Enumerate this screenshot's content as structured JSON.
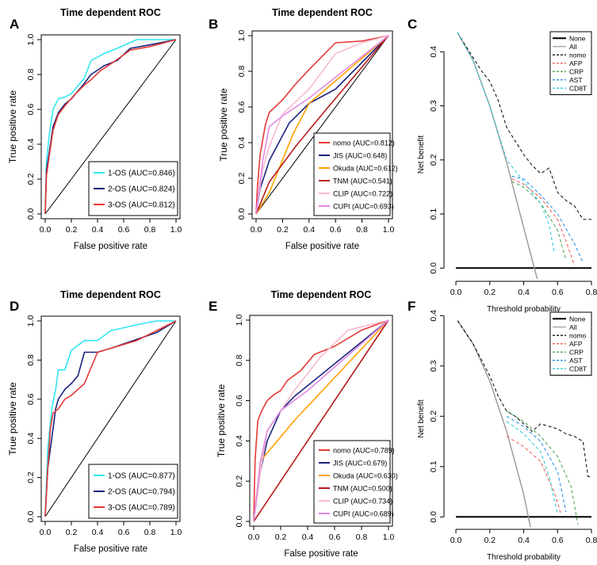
{
  "figure": {
    "panels": [
      {
        "letter": "A",
        "title": "Time dependent ROC",
        "xlabel": "False positive rate",
        "ylabel": "True positive rate",
        "kind": "roc"
      },
      {
        "letter": "B",
        "title": "Time dependent ROC",
        "xlabel": "False positive rate",
        "ylabel": "True positive rate",
        "kind": "roc"
      },
      {
        "letter": "C",
        "title": "",
        "xlabel": "Threshold probability",
        "ylabel": "Net benefit",
        "kind": "dca"
      },
      {
        "letter": "D",
        "title": "Time dependent ROC",
        "xlabel": "False positive rate",
        "ylabel": "True positive rate",
        "kind": "roc"
      },
      {
        "letter": "E",
        "title": "Time dependent ROC",
        "xlabel": "False positive rate",
        "ylabel": "True positive rate",
        "kind": "roc"
      },
      {
        "letter": "F",
        "title": "",
        "xlabel": "Threshold probability",
        "ylabel": "Net benefit",
        "kind": "dca"
      }
    ]
  },
  "chart_data": [
    {
      "panel": "A",
      "type": "line",
      "title": "Time dependent ROC",
      "xlabel": "False positive rate",
      "ylabel": "True positive rate",
      "xlim": [
        0,
        1
      ],
      "ylim": [
        0,
        1
      ],
      "xticks": [
        "0.0",
        "0.2",
        "0.4",
        "0.6",
        "0.8",
        "1.0"
      ],
      "yticks": [
        "0.0",
        "0.2",
        "0.4",
        "0.6",
        "0.8",
        "1.0"
      ],
      "legend_position": "bottom-right",
      "diagonal": true,
      "series": [
        {
          "name": "1-OS (AUC=0.846)",
          "color": "#33e6f2",
          "x": [
            0,
            0.01,
            0.03,
            0.06,
            0.1,
            0.15,
            0.2,
            0.3,
            0.35,
            0.45,
            0.55,
            0.7,
            0.85,
            1
          ],
          "y": [
            0,
            0.3,
            0.45,
            0.6,
            0.66,
            0.67,
            0.69,
            0.78,
            0.88,
            0.92,
            0.95,
            1.0,
            1.0,
            1
          ]
        },
        {
          "name": "2-OS (AUC=0.824)",
          "color": "#1a237e",
          "x": [
            0,
            0.01,
            0.03,
            0.06,
            0.1,
            0.15,
            0.2,
            0.3,
            0.35,
            0.45,
            0.55,
            0.65,
            0.8,
            1
          ],
          "y": [
            0,
            0.25,
            0.35,
            0.5,
            0.58,
            0.63,
            0.66,
            0.75,
            0.8,
            0.85,
            0.88,
            0.95,
            0.97,
            1
          ]
        },
        {
          "name": "3-OS (AUC=0.812)",
          "color": "#e53935",
          "x": [
            0,
            0.01,
            0.03,
            0.06,
            0.1,
            0.15,
            0.22,
            0.3,
            0.35,
            0.42,
            0.52,
            0.65,
            0.8,
            1
          ],
          "y": [
            0,
            0.22,
            0.33,
            0.48,
            0.57,
            0.62,
            0.68,
            0.74,
            0.77,
            0.82,
            0.87,
            0.94,
            0.96,
            1
          ]
        }
      ]
    },
    {
      "panel": "B",
      "type": "line",
      "title": "Time dependent ROC",
      "xlabel": "False positive rate",
      "ylabel": "True positive rate",
      "xlim": [
        0,
        1
      ],
      "ylim": [
        0,
        1
      ],
      "xticks": [
        "0.0",
        "0.2",
        "0.4",
        "0.6",
        "0.8",
        "1.0"
      ],
      "yticks": [
        "0.0",
        "0.2",
        "0.4",
        "0.6",
        "0.8",
        "1.0"
      ],
      "legend_position": "bottom-right",
      "diagonal": true,
      "series": [
        {
          "name": "nomo (AUC=0.812)",
          "color": "#e53935",
          "x": [
            0,
            0.01,
            0.03,
            0.07,
            0.1,
            0.2,
            0.3,
            0.4,
            0.6,
            0.8,
            1
          ],
          "y": [
            0,
            0.15,
            0.33,
            0.5,
            0.57,
            0.64,
            0.73,
            0.81,
            0.96,
            0.97,
            1
          ]
        },
        {
          "name": "JIS (AUC=0.648)",
          "color": "#1a237e",
          "x": [
            0,
            0.03,
            0.1,
            0.25,
            0.4,
            0.6,
            1
          ],
          "y": [
            0,
            0.14,
            0.3,
            0.51,
            0.62,
            0.7,
            1
          ]
        },
        {
          "name": "Okuda (AUC=0.612)",
          "color": "#ffa000",
          "x": [
            0,
            0.1,
            0.28,
            0.4,
            1
          ],
          "y": [
            0,
            0.12,
            0.45,
            0.62,
            1
          ]
        },
        {
          "name": "TNM (AUC=0.541)",
          "color": "#b71c1c",
          "x": [
            0,
            0.1,
            0.3,
            0.5,
            1
          ],
          "y": [
            0,
            0.18,
            0.38,
            0.56,
            1
          ]
        },
        {
          "name": "CLIP (AUC=0.722)",
          "color": "#f8bbd0",
          "x": [
            0,
            0.05,
            0.1,
            0.2,
            0.4,
            0.6,
            0.8,
            1
          ],
          "y": [
            0,
            0.25,
            0.38,
            0.56,
            0.7,
            0.9,
            0.96,
            1
          ]
        },
        {
          "name": "CUPI (AUC=0.693)",
          "color": "#e28ae6",
          "x": [
            0,
            0.05,
            0.1,
            0.2,
            0.4,
            1
          ],
          "y": [
            0,
            0.3,
            0.49,
            0.55,
            0.65,
            1
          ]
        }
      ]
    },
    {
      "panel": "C",
      "type": "line",
      "title": "",
      "xlabel": "Threshold probability",
      "ylabel": "Net benefit",
      "xlim": [
        0,
        0.8
      ],
      "ylim": [
        -0.02,
        0.44
      ],
      "xticks": [
        "0.0",
        "0.2",
        "0.4",
        "0.6",
        "0.8"
      ],
      "yticks": [
        "0.0",
        "0.1",
        "0.2",
        "0.3",
        "0.4"
      ],
      "legend_position": "top-right",
      "series": [
        {
          "name": "None",
          "color": "#000000",
          "style": "solid",
          "width": 2,
          "x": [
            0,
            0.8
          ],
          "y": [
            0,
            0
          ]
        },
        {
          "name": "All",
          "color": "#9e9e9e",
          "style": "solid",
          "width": 1.5,
          "x": [
            0.01,
            0.1,
            0.2,
            0.3,
            0.4,
            0.48
          ],
          "y": [
            0.435,
            0.385,
            0.3,
            0.195,
            0.075,
            -0.02
          ]
        },
        {
          "name": "nomo",
          "color": "#000000",
          "style": "dashed",
          "width": 1,
          "x": [
            0.01,
            0.1,
            0.15,
            0.2,
            0.25,
            0.3,
            0.35,
            0.4,
            0.45,
            0.5,
            0.55,
            0.6,
            0.65,
            0.7,
            0.75,
            0.8
          ],
          "y": [
            0.435,
            0.39,
            0.365,
            0.345,
            0.31,
            0.26,
            0.235,
            0.21,
            0.19,
            0.175,
            0.185,
            0.14,
            0.125,
            0.115,
            0.09,
            0.09
          ]
        },
        {
          "name": "AFP",
          "color": "#ef5350",
          "style": "dashed",
          "width": 1,
          "x": [
            0.33,
            0.4,
            0.5,
            0.6,
            0.65,
            0.7
          ],
          "y": [
            0.165,
            0.155,
            0.13,
            0.09,
            0.05,
            0.005
          ]
        },
        {
          "name": "CRP",
          "color": "#43a047",
          "style": "dashed",
          "width": 1,
          "x": [
            0.33,
            0.4,
            0.5,
            0.6,
            0.65
          ],
          "y": [
            0.16,
            0.15,
            0.12,
            0.07,
            0.015
          ]
        },
        {
          "name": "AST",
          "color": "#1e88e5",
          "style": "dashed",
          "width": 1,
          "x": [
            0.33,
            0.4,
            0.5,
            0.6,
            0.7,
            0.75
          ],
          "y": [
            0.17,
            0.165,
            0.135,
            0.1,
            0.045,
            0.01
          ]
        },
        {
          "name": "CD8T",
          "color": "#26c6da",
          "style": "dashed",
          "width": 1,
          "x": [
            0.01,
            0.1,
            0.2,
            0.3,
            0.4,
            0.5,
            0.55,
            0.58
          ],
          "y": [
            0.435,
            0.385,
            0.3,
            0.2,
            0.16,
            0.12,
            0.08,
            0.03
          ]
        }
      ]
    },
    {
      "panel": "D",
      "type": "line",
      "title": "Time dependent ROC",
      "xlabel": "False positive rate",
      "ylabel": "True positive rate",
      "xlim": [
        0,
        1
      ],
      "ylim": [
        0,
        1
      ],
      "xticks": [
        "0.0",
        "0.2",
        "0.4",
        "0.6",
        "0.8",
        "1.0"
      ],
      "yticks": [
        "0.0",
        "0.2",
        "0.4",
        "0.6",
        "0.8",
        "1.0"
      ],
      "legend_position": "bottom-right",
      "diagonal": true,
      "series": [
        {
          "name": "1-OS (AUC=0.877)",
          "color": "#33e6f2",
          "x": [
            0,
            0.02,
            0.05,
            0.08,
            0.1,
            0.15,
            0.2,
            0.3,
            0.35,
            0.4,
            0.5,
            0.7,
            0.85,
            1
          ],
          "y": [
            0,
            0.35,
            0.55,
            0.65,
            0.75,
            0.75,
            0.85,
            0.9,
            0.9,
            0.9,
            0.95,
            0.98,
            1.0,
            1
          ]
        },
        {
          "name": "2-OS (AUC=0.794)",
          "color": "#1a237e",
          "x": [
            0,
            0.02,
            0.05,
            0.08,
            0.1,
            0.15,
            0.2,
            0.25,
            0.3,
            0.4,
            0.5,
            0.85,
            1
          ],
          "y": [
            0,
            0.25,
            0.4,
            0.55,
            0.6,
            0.65,
            0.68,
            0.72,
            0.84,
            0.84,
            0.86,
            0.94,
            1
          ]
        },
        {
          "name": "3-OS (AUC=0.789)",
          "color": "#e53935",
          "x": [
            0,
            0.02,
            0.04,
            0.06,
            0.1,
            0.15,
            0.2,
            0.3,
            0.4,
            0.5,
            0.7,
            0.85,
            1
          ],
          "y": [
            0,
            0.25,
            0.45,
            0.53,
            0.55,
            0.6,
            0.62,
            0.68,
            0.84,
            0.86,
            0.9,
            0.95,
            1
          ]
        }
      ]
    },
    {
      "panel": "E",
      "type": "line",
      "title": "Time dependent ROC",
      "xlabel": "False positive rate",
      "ylabel": "True positive rate",
      "xlim": [
        0,
        1
      ],
      "ylim": [
        0,
        1
      ],
      "xticks": [
        "0.0",
        "0.2",
        "0.4",
        "0.6",
        "0.8",
        "1.0"
      ],
      "yticks": [
        "0.0",
        "0.2",
        "0.4",
        "0.6",
        "0.8",
        "1.0"
      ],
      "legend_position": "bottom-right",
      "diagonal": true,
      "series": [
        {
          "name": "nomo (AUC=0.789)",
          "color": "#e53935",
          "x": [
            0,
            0.01,
            0.03,
            0.06,
            0.1,
            0.15,
            0.2,
            0.25,
            0.35,
            0.45,
            0.6,
            0.8,
            1
          ],
          "y": [
            0,
            0.3,
            0.5,
            0.55,
            0.6,
            0.63,
            0.65,
            0.7,
            0.75,
            0.83,
            0.87,
            0.95,
            1
          ]
        },
        {
          "name": "JIS (AUC=0.679)",
          "color": "#1a237e",
          "x": [
            0,
            0.05,
            0.1,
            0.2,
            0.3,
            1
          ],
          "y": [
            0,
            0.25,
            0.4,
            0.55,
            0.62,
            1
          ]
        },
        {
          "name": "Okuda (AUC=0.630)",
          "color": "#ffa000",
          "x": [
            0,
            0.05,
            0.3,
            1
          ],
          "y": [
            0,
            0.3,
            0.5,
            1
          ]
        },
        {
          "name": "TNM (AUC=0.500)",
          "color": "#b71c1c",
          "x": [
            0,
            1
          ],
          "y": [
            0,
            1
          ]
        },
        {
          "name": "CLIP (AUC=0.734)",
          "color": "#f8bbd0",
          "x": [
            0,
            0.05,
            0.1,
            0.2,
            0.3,
            0.5,
            0.7,
            1
          ],
          "y": [
            0,
            0.25,
            0.45,
            0.55,
            0.65,
            0.82,
            0.95,
            1
          ]
        },
        {
          "name": "CUPI (AUC=0.689)",
          "color": "#e28ae6",
          "x": [
            0,
            0.05,
            0.1,
            0.2,
            0.4,
            1
          ],
          "y": [
            0,
            0.3,
            0.45,
            0.55,
            0.65,
            1
          ]
        }
      ]
    },
    {
      "panel": "F",
      "type": "line",
      "title": "",
      "xlabel": "Threshold probability",
      "ylabel": "Net benefit",
      "xlim": [
        0,
        0.8
      ],
      "ylim": [
        -0.02,
        0.41
      ],
      "xticks": [
        "0.0",
        "0.2",
        "0.4",
        "0.6",
        "0.8"
      ],
      "yticks": [
        "0.0",
        "0.1",
        "0.2",
        "0.3",
        "0.4"
      ],
      "legend_position": "top-right",
      "series": [
        {
          "name": "None",
          "color": "#000000",
          "style": "solid",
          "width": 2,
          "x": [
            0,
            0.8
          ],
          "y": [
            0,
            0
          ]
        },
        {
          "name": "All",
          "color": "#9e9e9e",
          "style": "solid",
          "width": 1.5,
          "x": [
            0.01,
            0.1,
            0.2,
            0.3,
            0.4,
            0.44
          ],
          "y": [
            0.39,
            0.345,
            0.27,
            0.17,
            0.045,
            -0.02
          ]
        },
        {
          "name": "nomo",
          "color": "#000000",
          "style": "dashed",
          "width": 1,
          "x": [
            0.01,
            0.1,
            0.2,
            0.25,
            0.3,
            0.35,
            0.4,
            0.45,
            0.5,
            0.55,
            0.6,
            0.65,
            0.7,
            0.75,
            0.78,
            0.8
          ],
          "y": [
            0.39,
            0.345,
            0.28,
            0.24,
            0.21,
            0.2,
            0.185,
            0.17,
            0.185,
            0.18,
            0.175,
            0.165,
            0.16,
            0.15,
            0.08,
            0.08
          ]
        },
        {
          "name": "AFP",
          "color": "#ef5350",
          "style": "dashed",
          "width": 1,
          "x": [
            0.3,
            0.4,
            0.5,
            0.58,
            0.62
          ],
          "y": [
            0.16,
            0.14,
            0.11,
            0.05,
            0.005
          ]
        },
        {
          "name": "CRP",
          "color": "#43a047",
          "style": "dashed",
          "width": 1,
          "x": [
            0.3,
            0.4,
            0.5,
            0.6,
            0.68,
            0.72
          ],
          "y": [
            0.21,
            0.19,
            0.16,
            0.12,
            0.06,
            -0.015
          ]
        },
        {
          "name": "AST",
          "color": "#1e88e5",
          "style": "dashed",
          "width": 1,
          "x": [
            0.3,
            0.4,
            0.5,
            0.6,
            0.65
          ],
          "y": [
            0.2,
            0.18,
            0.15,
            0.09,
            0.01
          ]
        },
        {
          "name": "CD8T",
          "color": "#26c6da",
          "style": "dashed",
          "width": 1,
          "x": [
            0.3,
            0.4,
            0.5,
            0.55,
            0.6
          ],
          "y": [
            0.19,
            0.165,
            0.13,
            0.08,
            0.005
          ]
        }
      ]
    }
  ]
}
